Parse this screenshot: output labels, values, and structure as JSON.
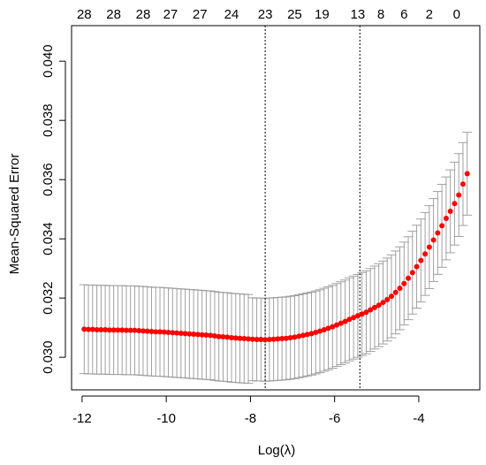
{
  "chart_data": {
    "type": "scatter",
    "title": "",
    "xlabel": "Log(λ)",
    "ylabel": "Mean-Squared Error",
    "xlim": [
      -12.25,
      -2.55
    ],
    "ylim": [
      0.0289,
      0.0412
    ],
    "x_ticks": [
      -12,
      -10,
      -8,
      -6,
      -4
    ],
    "x_tick_labels": [
      "-12",
      "-10",
      "-8",
      "-6",
      "-4"
    ],
    "y_ticks": [
      0.03,
      0.032,
      0.034,
      0.036,
      0.038,
      0.04
    ],
    "y_tick_labels": [
      "0.030",
      "0.032",
      "0.034",
      "0.036",
      "0.038",
      "0.040"
    ],
    "top_axis_ticks": [
      -11.95,
      -11.25,
      -10.55,
      -9.9,
      -9.2,
      -8.45,
      -7.65,
      -6.95,
      -6.3,
      -5.45,
      -4.9,
      -4.35,
      -3.75,
      -3.1
    ],
    "top_axis_labels": [
      "28",
      "28",
      "28",
      "27",
      "27",
      "24",
      "23",
      "25",
      "19",
      "13",
      "8",
      "6",
      "2",
      "0"
    ],
    "vertical_reference_lines": [
      -7.65,
      -5.4
    ],
    "point_color": "#ff0000",
    "errorbar_color": "#a0a0a0",
    "grid": false,
    "series": [
      {
        "log_lambda": [
          -11.95,
          -11.85,
          -11.75,
          -11.65,
          -11.55,
          -11.45,
          -11.35,
          -11.25,
          -11.15,
          -11.05,
          -10.95,
          -10.85,
          -10.75,
          -10.65,
          -10.55,
          -10.45,
          -10.35,
          -10.25,
          -10.15,
          -10.05,
          -9.95,
          -9.85,
          -9.75,
          -9.65,
          -9.55,
          -9.45,
          -9.35,
          -9.25,
          -9.15,
          -9.05,
          -8.95,
          -8.85,
          -8.75,
          -8.65,
          -8.55,
          -8.45,
          -8.35,
          -8.25,
          -8.15,
          -8.05,
          -7.95,
          -7.85,
          -7.75,
          -7.65,
          -7.55,
          -7.45,
          -7.35,
          -7.25,
          -7.15,
          -7.05,
          -6.95,
          -6.85,
          -6.75,
          -6.65,
          -6.55,
          -6.45,
          -6.35,
          -6.25,
          -6.15,
          -6.05,
          -5.95,
          -5.85,
          -5.75,
          -5.65,
          -5.55,
          -5.45,
          -5.35,
          -5.25,
          -5.15,
          -5.05,
          -4.95,
          -4.85,
          -4.75,
          -4.65,
          -4.55,
          -4.45,
          -4.35,
          -4.25,
          -4.15,
          -4.05,
          -3.95,
          -3.85,
          -3.75,
          -3.65,
          -3.55,
          -3.45,
          -3.35,
          -3.25,
          -3.15,
          -3.05,
          -2.95,
          -2.85
        ],
        "mse": [
          0.03095,
          0.03094,
          0.03094,
          0.03093,
          0.03093,
          0.03093,
          0.03092,
          0.03092,
          0.03092,
          0.03092,
          0.03091,
          0.03091,
          0.03091,
          0.0309,
          0.03089,
          0.03088,
          0.03087,
          0.03086,
          0.03086,
          0.03085,
          0.03084,
          0.03083,
          0.03082,
          0.03081,
          0.0308,
          0.03079,
          0.03078,
          0.03077,
          0.03076,
          0.03075,
          0.03074,
          0.03072,
          0.0307,
          0.03069,
          0.03068,
          0.03066,
          0.03065,
          0.03064,
          0.03063,
          0.03062,
          0.03061,
          0.0306,
          0.0306,
          0.03059,
          0.0306,
          0.03061,
          0.03062,
          0.03063,
          0.03064,
          0.03066,
          0.03068,
          0.03071,
          0.03074,
          0.03077,
          0.0308,
          0.03084,
          0.03088,
          0.03093,
          0.03098,
          0.03103,
          0.03109,
          0.03115,
          0.03121,
          0.03128,
          0.03134,
          0.0314,
          0.03146,
          0.03152,
          0.0316,
          0.03168,
          0.03176,
          0.03185,
          0.03195,
          0.03206,
          0.03219,
          0.03233,
          0.03249,
          0.03267,
          0.03286,
          0.03306,
          0.03327,
          0.03349,
          0.03372,
          0.03396,
          0.0342,
          0.03444,
          0.03469,
          0.03493,
          0.03519,
          0.03548,
          0.03585,
          0.0362
        ],
        "se": [
          0.0015,
          0.0015,
          0.0015,
          0.0015,
          0.0015,
          0.0015,
          0.0015,
          0.0015,
          0.0015,
          0.0015,
          0.0015,
          0.0015,
          0.0015,
          0.0015,
          0.0015,
          0.0015,
          0.0015,
          0.0015,
          0.0015,
          0.0015,
          0.0015,
          0.0015,
          0.0015,
          0.0015,
          0.0015,
          0.0015,
          0.0015,
          0.0015,
          0.0015,
          0.0015,
          0.0015,
          0.0015,
          0.0015,
          0.0015,
          0.0015,
          0.0015,
          0.0015,
          0.0015,
          0.0015,
          0.0015,
          0.0014,
          0.0014,
          0.0014,
          0.0014,
          0.0014,
          0.0014,
          0.0014,
          0.0014,
          0.0014,
          0.0014,
          0.0014,
          0.0014,
          0.0014,
          0.0014,
          0.0014,
          0.0014,
          0.0014,
          0.0014,
          0.0014,
          0.0014,
          0.0014,
          0.0014,
          0.0014,
          0.0014,
          0.0014,
          0.0014,
          0.0014,
          0.0014,
          0.0014,
          0.0014,
          0.0014,
          0.0014,
          0.0014,
          0.0014,
          0.0014,
          0.0014,
          0.0014,
          0.0014,
          0.0014,
          0.0014,
          0.0014,
          0.0014,
          0.0014,
          0.0014,
          0.0014,
          0.0014,
          0.0014,
          0.0014,
          0.0014,
          0.0014,
          0.0014,
          0.0014
        ]
      }
    ]
  }
}
